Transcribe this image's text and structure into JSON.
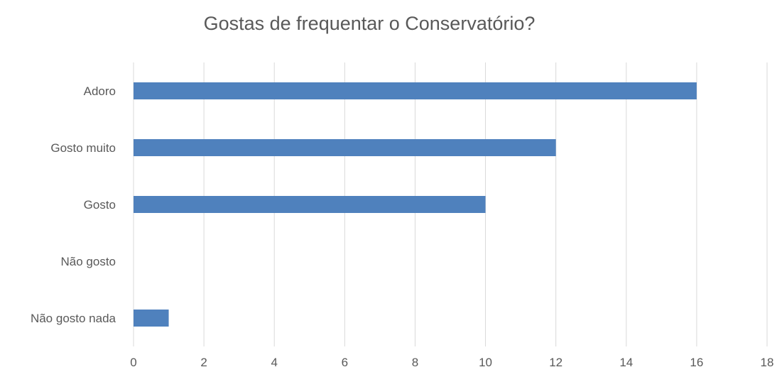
{
  "chart_data": {
    "type": "bar",
    "orientation": "horizontal",
    "title": "Gostas de frequentar o Conservatório?",
    "categories": [
      "Adoro",
      "Gosto muito",
      "Gosto",
      "Não gosto",
      "Não gosto nada"
    ],
    "values": [
      16,
      12,
      10,
      0,
      1
    ],
    "xlim": [
      0,
      18
    ],
    "xticks": [
      0,
      2,
      4,
      6,
      8,
      10,
      12,
      14,
      16,
      18
    ],
    "xlabel": "",
    "ylabel": "",
    "grid": true,
    "legend": "none",
    "bar_color": "#4f81bd"
  }
}
